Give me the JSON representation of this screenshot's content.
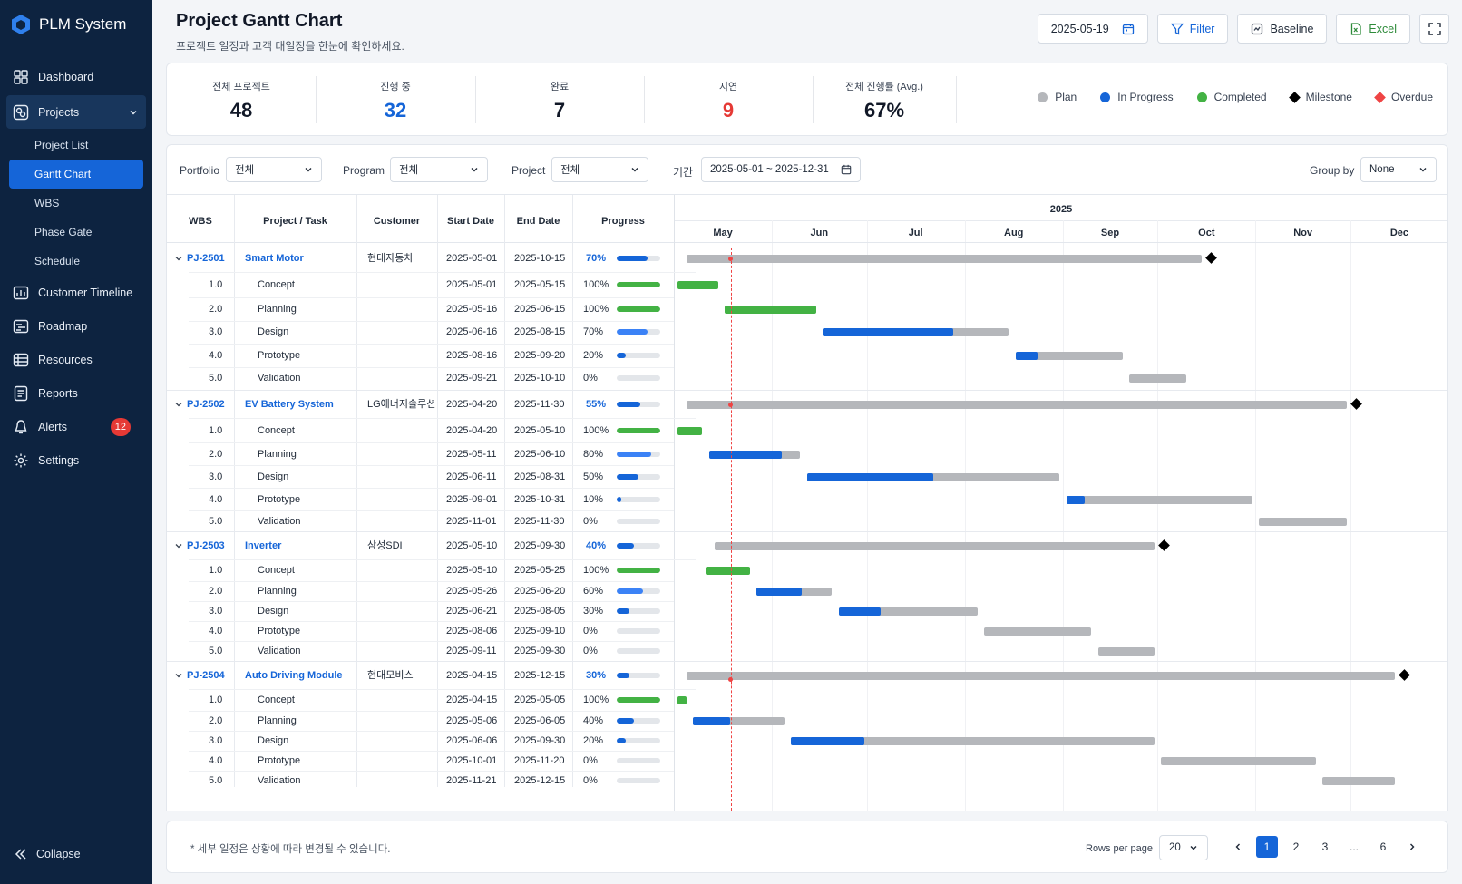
{
  "app": {
    "title": "PLM System"
  },
  "sidebar": {
    "items": [
      {
        "key": "dashboard",
        "label": "Dashboard",
        "icon": "dashboard-icon"
      },
      {
        "key": "projects",
        "label": "Projects",
        "icon": "projects-icon"
      },
      {
        "key": "customer-timeline",
        "label": "Customer Timeline",
        "icon": "timeline-icon"
      },
      {
        "key": "roadmap",
        "label": "Roadmap",
        "icon": "roadmap-icon"
      },
      {
        "key": "resources",
        "label": "Resources",
        "icon": "resources-icon"
      },
      {
        "key": "reports",
        "label": "Reports",
        "icon": "reports-icon"
      },
      {
        "key": "alerts",
        "label": "Alerts",
        "icon": "alerts-icon",
        "badge": "12"
      },
      {
        "key": "settings",
        "label": "Settings",
        "icon": "settings-icon"
      }
    ],
    "subitems": [
      "Project List",
      "Gantt Chart",
      "WBS",
      "Phase Gate",
      "Schedule"
    ],
    "active_sub": "Gantt Chart",
    "collapse_label": "Collapse"
  },
  "header": {
    "title": "Project Gantt Chart",
    "subtitle": "프로젝트 일정과 고객 대일정을 한눈에 확인하세요.",
    "date": "2025-05-19",
    "filter_label": "Filter",
    "baseline_label": "Baseline",
    "excel_label": "Excel"
  },
  "stats": [
    {
      "label": "전체 프로젝트",
      "value": "48",
      "tone": "dark"
    },
    {
      "label": "진행 중",
      "value": "32",
      "tone": "blue"
    },
    {
      "label": "완료",
      "value": "7",
      "tone": "dark"
    },
    {
      "label": "지연",
      "value": "9",
      "tone": "red"
    },
    {
      "label": "전체 진행률 (Avg.)",
      "value": "67%",
      "tone": "dark"
    }
  ],
  "legend": [
    {
      "label": "Plan",
      "shape": "dot",
      "color": "#b5b7bb"
    },
    {
      "label": "In Progress",
      "shape": "dot",
      "color": "#1565d8"
    },
    {
      "label": "Completed",
      "shape": "dot",
      "color": "#43b244"
    },
    {
      "label": "Milestone",
      "shape": "diamond",
      "color": "#000000"
    },
    {
      "label": "Overdue",
      "shape": "diamond",
      "color": "#ef4444"
    }
  ],
  "filters": {
    "portfolio_label": "Portfolio",
    "portfolio_value": "전체",
    "program_label": "Program",
    "program_value": "전체",
    "project_label": "Project",
    "project_value": "전체",
    "period_label": "기간",
    "period_value": "2025-05-01 ~ 2025-12-31",
    "groupby_label": "Group by",
    "groupby_value": "None"
  },
  "table": {
    "columns": [
      "WBS",
      "Project / Task",
      "Customer",
      "Start Date",
      "End Date",
      "Progress"
    ],
    "year": "2025",
    "months": [
      "May",
      "Jun",
      "Jul",
      "Aug",
      "Sep",
      "Oct",
      "Nov",
      "Dec"
    ],
    "timeline_start": "2025-05-01",
    "timeline_end": "2025-12-31",
    "today": "2025-05-19",
    "colors": {
      "plan": "#b5b7bb",
      "progress": "#1565d8",
      "completed": "#43b244",
      "today": "#ef4444"
    },
    "projects": [
      {
        "id": "PJ-2501",
        "name": "Smart Motor",
        "customer": "현대자동차",
        "start": "2025-05-01",
        "end": "2025-10-15",
        "progress": 70,
        "tasks": [
          {
            "wbs": "1.0",
            "name": "Concept",
            "start": "2025-05-01",
            "end": "2025-05-15",
            "progress": 100
          },
          {
            "wbs": "2.0",
            "name": "Planning",
            "start": "2025-05-16",
            "end": "2025-06-15",
            "progress": 100
          },
          {
            "wbs": "3.0",
            "name": "Design",
            "start": "2025-06-16",
            "end": "2025-08-15",
            "progress": 70
          },
          {
            "wbs": "4.0",
            "name": "Prototype",
            "start": "2025-08-16",
            "end": "2025-09-20",
            "progress": 20
          },
          {
            "wbs": "5.0",
            "name": "Validation",
            "start": "2025-09-21",
            "end": "2025-10-10",
            "progress": 0
          }
        ]
      },
      {
        "id": "PJ-2502",
        "name": "EV Battery System",
        "customer": "LG에너지솔루션",
        "start": "2025-04-20",
        "end": "2025-11-30",
        "progress": 55,
        "tasks": [
          {
            "wbs": "1.0",
            "name": "Concept",
            "start": "2025-04-20",
            "end": "2025-05-10",
            "progress": 100
          },
          {
            "wbs": "2.0",
            "name": "Planning",
            "start": "2025-05-11",
            "end": "2025-06-10",
            "progress": 80
          },
          {
            "wbs": "3.0",
            "name": "Design",
            "start": "2025-06-11",
            "end": "2025-08-31",
            "progress": 50
          },
          {
            "wbs": "4.0",
            "name": "Prototype",
            "start": "2025-09-01",
            "end": "2025-10-31",
            "progress": 10
          },
          {
            "wbs": "5.0",
            "name": "Validation",
            "start": "2025-11-01",
            "end": "2025-11-30",
            "progress": 0
          }
        ]
      },
      {
        "id": "PJ-2503",
        "name": "Inverter",
        "customer": "삼성SDI",
        "start": "2025-05-10",
        "end": "2025-09-30",
        "progress": 40,
        "tasks": [
          {
            "wbs": "1.0",
            "name": "Concept",
            "start": "2025-05-10",
            "end": "2025-05-25",
            "progress": 100
          },
          {
            "wbs": "2.0",
            "name": "Planning",
            "start": "2025-05-26",
            "end": "2025-06-20",
            "progress": 60
          },
          {
            "wbs": "3.0",
            "name": "Design",
            "start": "2025-06-21",
            "end": "2025-08-05",
            "progress": 30
          },
          {
            "wbs": "4.0",
            "name": "Prototype",
            "start": "2025-08-06",
            "end": "2025-09-10",
            "progress": 0
          },
          {
            "wbs": "5.0",
            "name": "Validation",
            "start": "2025-09-11",
            "end": "2025-09-30",
            "progress": 0
          }
        ]
      },
      {
        "id": "PJ-2504",
        "name": "Auto Driving Module",
        "customer": "현대모비스",
        "start": "2025-04-15",
        "end": "2025-12-15",
        "progress": 30,
        "tasks": [
          {
            "wbs": "1.0",
            "name": "Concept",
            "start": "2025-04-15",
            "end": "2025-05-05",
            "progress": 100
          },
          {
            "wbs": "2.0",
            "name": "Planning",
            "start": "2025-05-06",
            "end": "2025-06-05",
            "progress": 40
          },
          {
            "wbs": "3.0",
            "name": "Design",
            "start": "2025-06-06",
            "end": "2025-09-30",
            "progress": 20
          },
          {
            "wbs": "4.0",
            "name": "Prototype",
            "start": "2025-10-01",
            "end": "2025-11-20",
            "progress": 0
          },
          {
            "wbs": "5.0",
            "name": "Validation",
            "start": "2025-11-21",
            "end": "2025-12-15",
            "progress": 0
          }
        ]
      }
    ]
  },
  "footer": {
    "note": "* 세부 일정은 상황에 따라 변경될 수 있습니다.",
    "rows_label": "Rows per page",
    "rows_value": "20",
    "pages": [
      "1",
      "2",
      "3",
      "...",
      "6"
    ],
    "current_page": "1"
  }
}
